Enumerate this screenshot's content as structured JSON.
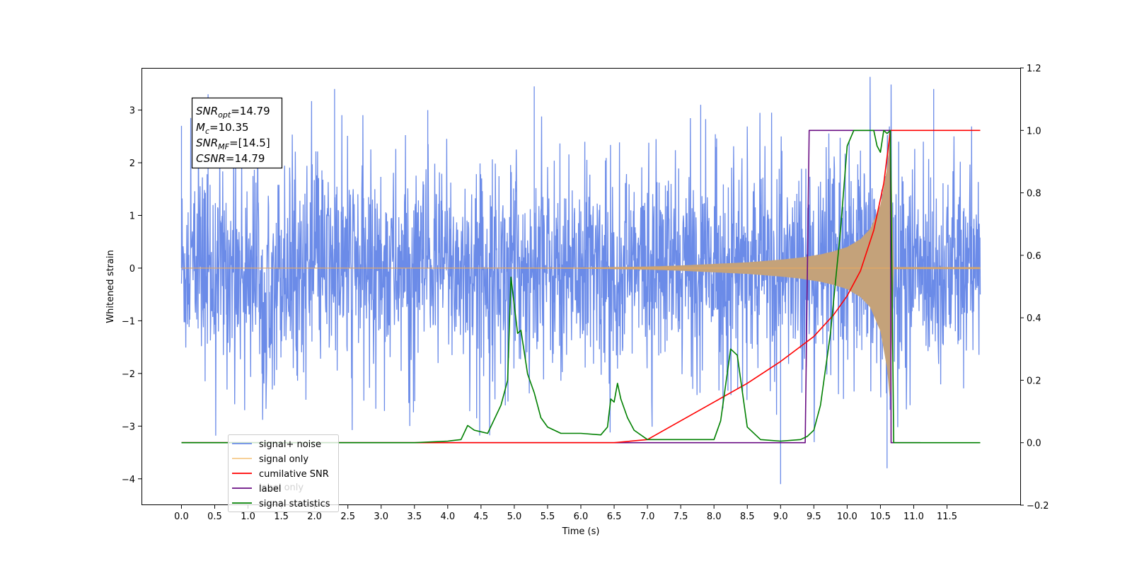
{
  "chart_data": {
    "type": "line",
    "xlabel": "Time (s)",
    "ylabel": "Whitened strain",
    "xlim": [
      -0.6,
      12.6
    ],
    "ylim": [
      -4.5,
      3.8
    ],
    "ylim_right": [
      -0.2,
      1.2
    ],
    "x_ticks": [
      0.0,
      0.5,
      1.0,
      1.5,
      2.0,
      2.5,
      3.0,
      3.5,
      4.0,
      4.5,
      5.0,
      5.5,
      6.0,
      6.5,
      7.0,
      7.5,
      8.0,
      8.5,
      9.0,
      9.5,
      10.0,
      10.5,
      11.0,
      11.5
    ],
    "x_tick_labels": [
      "0.0",
      "0.5",
      "1.0",
      "1.5",
      "2.0",
      "2.5",
      "3.0",
      "3.5",
      "4.0",
      "4.5",
      "5.0",
      "5.5",
      "6.0",
      "6.5",
      "7.0",
      "7.5",
      "8.0",
      "8.5",
      "9.0",
      "9.5",
      "10.0",
      "10.5",
      "11.0",
      "11.5"
    ],
    "y_ticks_left": [
      -4,
      -3,
      -2,
      -1,
      0,
      1,
      2,
      3
    ],
    "y_tick_labels_left": [
      "−4",
      "−3",
      "−2",
      "−1",
      "0",
      "1",
      "2",
      "3"
    ],
    "y_ticks_right": [
      -0.2,
      0.0,
      0.2,
      0.4,
      0.6,
      0.8,
      1.0,
      1.2
    ],
    "y_tick_labels_right": [
      "−0.2",
      "0.0",
      "0.2",
      "0.4",
      "0.6",
      "0.8",
      "1.0",
      "1.2"
    ],
    "grid": false,
    "legend_position": "lower-left",
    "colors": {
      "signal_noise": "#6b8be8",
      "signal_only": "#e8a860",
      "signal_fill": "#c4a27a",
      "cumulative_snr": "#ff0000",
      "label": "#6a0d83",
      "signal_statistics": "#008000",
      "label_only": "#d2d2d2"
    },
    "series": [
      {
        "name": "signal+ noise",
        "axis": "left",
        "x_range": [
          0.0,
          12.0
        ],
        "envelope_approx": [
          -2.0,
          2.0
        ],
        "peak_points": [
          [
            0.0,
            2.7
          ],
          [
            0.4,
            3.3
          ],
          [
            2.3,
            3.4
          ],
          [
            3.7,
            3.0
          ],
          [
            5.3,
            3.45
          ],
          [
            7.8,
            3.1
          ],
          [
            9.0,
            -4.1
          ],
          [
            10.6,
            -3.8
          ],
          [
            11.3,
            3.4
          ]
        ]
      },
      {
        "name": "signal only",
        "axis": "left",
        "x": [
          0.0,
          6.0,
          7.0,
          7.5,
          8.0,
          8.5,
          9.0,
          9.3,
          9.6,
          9.8,
          10.0,
          10.2,
          10.35,
          10.5,
          10.6,
          10.65,
          10.7,
          12.0
        ],
        "amplitude": [
          0.0,
          0.01,
          0.03,
          0.05,
          0.08,
          0.11,
          0.16,
          0.2,
          0.26,
          0.32,
          0.4,
          0.55,
          0.75,
          1.2,
          1.9,
          2.6,
          0.02,
          0.02
        ]
      },
      {
        "name": "cumilative SNR",
        "axis": "right",
        "x": [
          0.0,
          6.5,
          7.0,
          7.5,
          8.0,
          8.5,
          9.0,
          9.5,
          9.8,
          10.0,
          10.2,
          10.4,
          10.55,
          10.65,
          10.7,
          12.0
        ],
        "values": [
          0.0,
          0.0,
          0.01,
          0.07,
          0.13,
          0.19,
          0.26,
          0.34,
          0.41,
          0.47,
          0.55,
          0.68,
          0.83,
          1.0,
          1.0,
          1.0
        ]
      },
      {
        "name": "label",
        "axis": "right",
        "x": [
          0.0,
          9.37,
          9.43,
          10.65,
          10.66,
          11.1
        ],
        "values": [
          0.0,
          0.0,
          1.0,
          1.0,
          0.0,
          0.0
        ]
      },
      {
        "name": "signal statistics",
        "axis": "right",
        "x": [
          0.0,
          3.5,
          4.0,
          4.2,
          4.3,
          4.4,
          4.5,
          4.6,
          4.8,
          4.9,
          4.95,
          5.05,
          5.1,
          5.2,
          5.3,
          5.4,
          5.5,
          5.7,
          6.0,
          6.3,
          6.4,
          6.45,
          6.5,
          6.55,
          6.6,
          6.7,
          6.8,
          7.0,
          7.3,
          7.6,
          8.0,
          8.1,
          8.25,
          8.35,
          8.5,
          8.7,
          9.0,
          9.3,
          9.4,
          9.5,
          9.6,
          9.75,
          9.9,
          10.0,
          10.1,
          10.2,
          10.4,
          10.45,
          10.5,
          10.55,
          10.6,
          10.65,
          10.7,
          12.0
        ],
        "values": [
          0.0,
          0.0,
          0.005,
          0.01,
          0.055,
          0.04,
          0.035,
          0.03,
          0.12,
          0.2,
          0.53,
          0.35,
          0.36,
          0.22,
          0.16,
          0.08,
          0.05,
          0.03,
          0.03,
          0.025,
          0.05,
          0.14,
          0.13,
          0.19,
          0.14,
          0.08,
          0.04,
          0.01,
          0.01,
          0.01,
          0.01,
          0.07,
          0.3,
          0.28,
          0.05,
          0.01,
          0.005,
          0.01,
          0.02,
          0.04,
          0.12,
          0.35,
          0.68,
          0.95,
          1.0,
          1.0,
          1.0,
          0.95,
          0.93,
          1.0,
          0.99,
          1.0,
          0.0,
          0.0
        ]
      }
    ],
    "annotation_box": {
      "snr_opt_label": "SNR",
      "snr_opt_sub": "opt",
      "snr_opt_value": "=14.79",
      "mc_label": "M",
      "mc_sub": "c",
      "mc_value": "=10.35",
      "snr_mf_label": "SNR",
      "snr_mf_sub": "MF",
      "snr_mf_value": "=[14.5]",
      "csnr_label": "CSNR",
      "csnr_value": "=14.79"
    },
    "legend": [
      {
        "label": "signal+ noise",
        "color": "#6b8be8"
      },
      {
        "label": "signal only",
        "color": "#f6c98a"
      },
      {
        "label": "cumilative SNR",
        "color": "#ff0000"
      },
      {
        "label": "label",
        "color": "#6a0d83"
      },
      {
        "label": "signal statistics",
        "color": "#008000"
      }
    ],
    "legend_hidden_text": "label only"
  }
}
